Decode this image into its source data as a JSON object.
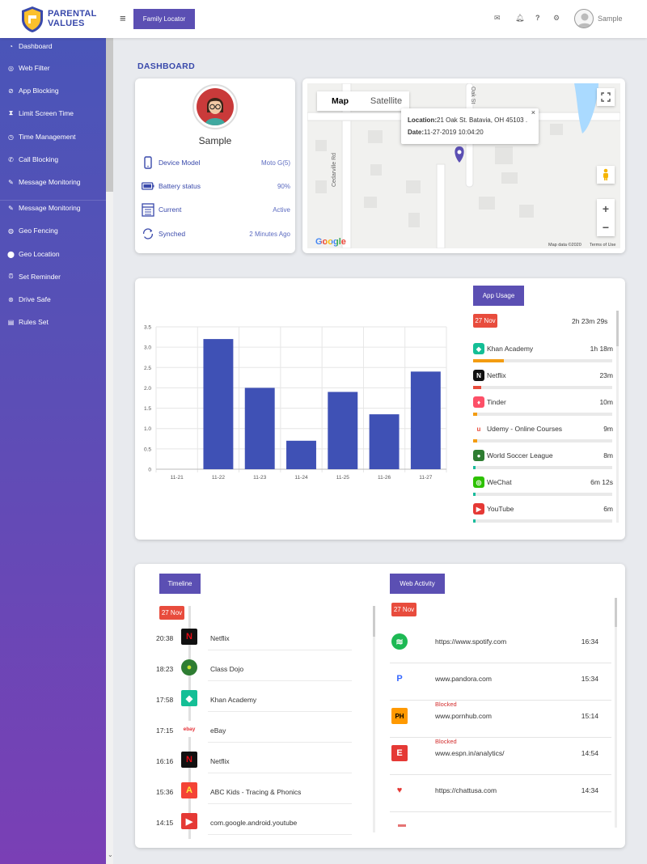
{
  "brand": {
    "name_line1": "PARENTAL",
    "name_line2": "VALUES"
  },
  "header": {
    "menu_icon": "hamburger-icon",
    "family_locator_label": "Family Locator",
    "user_name": "Sample",
    "icons": [
      "mail-icon",
      "bell-icon",
      "help-icon",
      "gear-icon"
    ]
  },
  "sidebar": {
    "top_items": [
      {
        "label": "Dashboard",
        "icon": "dashboard-icon"
      },
      {
        "label": "Web Filter",
        "icon": "globe-icon"
      },
      {
        "label": "App Blocking",
        "icon": "block-icon"
      },
      {
        "label": "Limit Screen Time",
        "icon": "hourglass-icon"
      },
      {
        "label": "Time Management",
        "icon": "clock-icon"
      },
      {
        "label": "Call Blocking",
        "icon": "phone-icon"
      },
      {
        "label": "Message Monitoring",
        "icon": "message-icon"
      },
      {
        "label": "Geo Fencing",
        "icon": "geofence-icon"
      }
    ],
    "items": [
      {
        "label": "Message Monitoring",
        "icon": "message-icon"
      },
      {
        "label": "Geo Fencing",
        "icon": "geofence-icon"
      },
      {
        "label": "Geo Location",
        "icon": "location-pin-icon"
      },
      {
        "label": "Set Reminder",
        "icon": "alarm-icon"
      },
      {
        "label": "Drive Safe",
        "icon": "steering-wheel-icon"
      },
      {
        "label": "Rules Set",
        "icon": "rules-icon"
      }
    ]
  },
  "dashboard": {
    "title": "DASHBOARD"
  },
  "profile": {
    "name": "Sample",
    "rows": [
      {
        "label": "Device Model",
        "value": "Moto G(5)",
        "icon": "phone-device-icon"
      },
      {
        "label": "Battery status",
        "value": "90%",
        "icon": "battery-icon"
      },
      {
        "label": "Current",
        "value": "Active",
        "icon": "calendar-icon"
      },
      {
        "label": "Synched",
        "value": "2 Minutes Ago",
        "icon": "sync-icon"
      }
    ]
  },
  "map": {
    "tabs": [
      "Map",
      "Satellite"
    ],
    "info_location_label": "Location:",
    "info_location_value": "21 Oak St. Batavia, OH 45103 .",
    "info_date_label": "Date:",
    "info_date_value": "11-27-2019 10:04:20",
    "road_label_1": "Cedarville Rd",
    "road_label_2": "Oak St",
    "google": "Google",
    "map_data": "Map data ©2020",
    "terms": "Terms of Use",
    "close_glyph": "×",
    "zoom_in": "+",
    "zoom_out": "−"
  },
  "chart_data": {
    "type": "bar",
    "categories": [
      "11-21",
      "11-22",
      "11-23",
      "11-24",
      "11-25",
      "11-26",
      "11-27"
    ],
    "values": [
      0,
      3.2,
      2.0,
      0.7,
      1.9,
      1.35,
      2.4
    ],
    "ylim": [
      0,
      3.5
    ],
    "yticks": [
      "0",
      "0.5",
      "1.0",
      "1.5",
      "2.0",
      "2.5",
      "3.0",
      "3.5"
    ],
    "title": "",
    "xlabel": "",
    "ylabel": "",
    "grid": true,
    "color": "#3f51b5"
  },
  "app_usage": {
    "button_label": "App Usage",
    "date_badge": "27 Nov",
    "total": "2h 23m 29s",
    "items": [
      {
        "name": "Khan Academy",
        "time": "1h 18m",
        "fraction": 0.22,
        "color": "#f39c12",
        "icon": "khan-academy-icon",
        "icon_bg": "#14bf96",
        "glyph": "◆"
      },
      {
        "name": "Netflix",
        "time": "23m",
        "fraction": 0.06,
        "color": "#e74c3c",
        "icon": "netflix-icon",
        "icon_bg": "#111",
        "glyph": "N"
      },
      {
        "name": "Tinder",
        "time": "10m",
        "fraction": 0.03,
        "color": "#f39c12",
        "icon": "tinder-icon",
        "icon_bg": "#fd5068",
        "glyph": "♦"
      },
      {
        "name": "Udemy - Online Courses",
        "time": "9m",
        "fraction": 0.03,
        "color": "#f39c12",
        "icon": "udemy-icon",
        "icon_bg": "#fff",
        "glyph": "u"
      },
      {
        "name": "World Soccer League",
        "time": "8m",
        "fraction": 0.02,
        "color": "#1abc9c",
        "icon": "soccer-icon",
        "icon_bg": "#2e7d32",
        "glyph": "●"
      },
      {
        "name": "WeChat",
        "time": "6m 12s",
        "fraction": 0.02,
        "color": "#1abc9c",
        "icon": "wechat-icon",
        "icon_bg": "#2dc100",
        "glyph": "◎"
      },
      {
        "name": "YouTube",
        "time": "6m",
        "fraction": 0.02,
        "color": "#1abc9c",
        "icon": "youtube-icon",
        "icon_bg": "#e53935",
        "glyph": "▶"
      }
    ]
  },
  "timeline": {
    "button_label": "Timeline",
    "date_badge": "27 Nov",
    "items": [
      {
        "time": "20:38",
        "name": "Netflix",
        "icon": "netflix-icon",
        "bg": "#111",
        "glyph": "N",
        "fg": "#e50914"
      },
      {
        "time": "18:23",
        "name": "Class Dojo",
        "icon": "class-dojo-icon",
        "bg": "#2e7d32",
        "glyph": "●",
        "fg": "#c6e030"
      },
      {
        "time": "17:58",
        "name": "Khan Academy",
        "icon": "khan-academy-icon",
        "bg": "#14bf96",
        "glyph": "◆",
        "fg": "#fff"
      },
      {
        "time": "17:15",
        "name": "eBay",
        "icon": "ebay-icon",
        "bg": "#fff",
        "glyph": "ebay",
        "fg": "#e53238"
      },
      {
        "time": "16:16",
        "name": "Netflix",
        "icon": "netflix-icon",
        "bg": "#111",
        "glyph": "N",
        "fg": "#e50914"
      },
      {
        "time": "15:36",
        "name": "ABC Kids - Tracing & Phonics",
        "icon": "abc-kids-icon",
        "bg": "#f44336",
        "glyph": "A",
        "fg": "#ffeb3b"
      },
      {
        "time": "14:15",
        "name": "com.google.android.youtube",
        "icon": "youtube-icon",
        "bg": "#e53935",
        "glyph": "▶",
        "fg": "#fff"
      }
    ]
  },
  "web_activity": {
    "button_label": "Web Activity",
    "date_badge": "27 Nov",
    "items": [
      {
        "url": "https://www.spotify.com",
        "time": "16:34",
        "blocked": "",
        "icon": "spotify-icon",
        "bg": "#1db954",
        "glyph": "≋",
        "fg": "#fff"
      },
      {
        "url": "www.pandora.com",
        "time": "15:34",
        "blocked": "",
        "icon": "pandora-icon",
        "bg": "#fff",
        "glyph": "P",
        "fg": "#3668ff"
      },
      {
        "url": "www.pornhub.com",
        "time": "15:14",
        "blocked": "Blocked",
        "icon": "pornhub-icon",
        "bg": "#ff9900",
        "glyph": "PH",
        "fg": "#000"
      },
      {
        "url": "www.espn.in/analytics/",
        "time": "14:54",
        "blocked": "Blocked",
        "icon": "espn-icon",
        "bg": "#e53935",
        "glyph": "E",
        "fg": "#fff"
      },
      {
        "url": "https://chattusa.com",
        "time": "14:34",
        "blocked": "",
        "icon": "chat-icon",
        "bg": "#fff",
        "glyph": "♥",
        "fg": "#e53935"
      }
    ]
  }
}
